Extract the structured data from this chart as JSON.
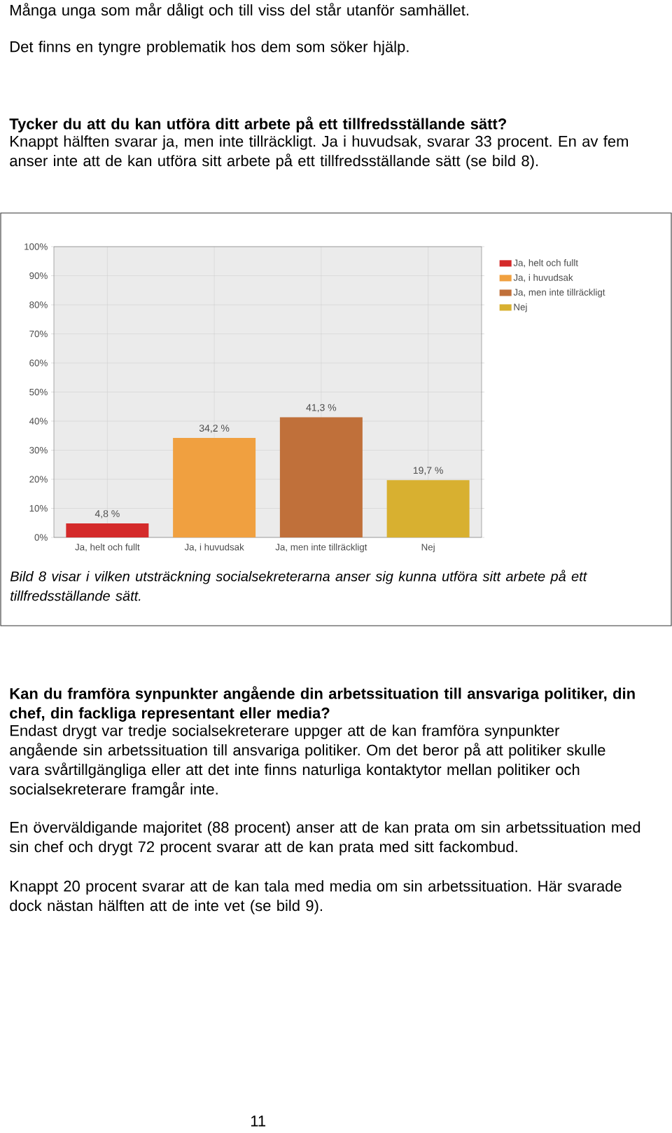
{
  "chart_data": {
    "type": "bar",
    "categories": [
      "Ja, helt och fullt",
      "Ja, i huvudsak",
      "Ja, men inte tillräckligt",
      "Nej"
    ],
    "series": [
      {
        "name": "Ja, helt och fullt",
        "color": "#d42a2a",
        "values": [
          4.8,
          null,
          null,
          null
        ],
        "value_labels": [
          "4,8 %",
          null,
          null,
          null
        ]
      },
      {
        "name": "Ja, i huvudsak",
        "color": "#f0a040",
        "values": [
          null,
          34.2,
          null,
          null
        ],
        "value_labels": [
          null,
          "34,2 %",
          null,
          null
        ]
      },
      {
        "name": "Ja, men inte tillräckligt",
        "color": "#c0703a",
        "values": [
          null,
          null,
          41.3,
          null
        ],
        "value_labels": [
          null,
          null,
          "41,3 %",
          null
        ]
      },
      {
        "name": "Nej",
        "color": "#d8b030",
        "values": [
          null,
          null,
          null,
          19.7
        ],
        "value_labels": [
          null,
          null,
          null,
          "19,7 %"
        ]
      }
    ],
    "ylim": [
      0,
      100
    ],
    "yticks": [
      {
        "value": 0,
        "label": "0%"
      },
      {
        "value": 10,
        "label": "10%"
      },
      {
        "value": 20,
        "label": "20%"
      },
      {
        "value": 30,
        "label": "30%"
      },
      {
        "value": 40,
        "label": "40%"
      },
      {
        "value": 50,
        "label": "50%"
      },
      {
        "value": 60,
        "label": "60%"
      },
      {
        "value": 70,
        "label": "70%"
      },
      {
        "value": 80,
        "label": "80%"
      },
      {
        "value": 90,
        "label": "90%"
      },
      {
        "value": 100,
        "label": "100%"
      }
    ],
    "grid": true,
    "legend": "right",
    "annotations": [
      "Många unga som mår dåligt och till viss del står utanför samhället.",
      "Det finns en tyngre problematik hos dem som söker hjälp.",
      "Tycker du att du kan utföra ditt arbete på ett tillfredsställande sätt?",
      "Knappt hälften svarar ja, men inte tillräckligt. Ja i huvudsak, svarar 33 procent. En av fem anser inte att de kan utföra sitt arbete på ett tillfredsställande sätt (se bild 8).",
      "Bild 8 visar i vilken utsträckning socialsekreterarna anser sig kunna utföra sitt arbete på ett tillfredsställande sätt.",
      "Kan du framföra synpunkter angående din arbetssituation till ansvariga politiker, din chef, din fackliga representant eller media?",
      "Endast drygt var tredje socialsekreterare uppger att de kan framföra synpunkter angående sin arbetssituation till ansvariga politiker. Om det beror på att politiker skulle vara svårtillgängliga eller att det inte finns naturliga kontaktytor mellan politiker och socialsekreterare framgår inte.",
      "En överväldigande majoritet (88 procent) anser att de kan prata om sin arbetssituation med sin chef och drygt 72 procent svarar att de kan prata med sitt fackombud.",
      "Knappt 20 procent svarar att de kan tala med media om sin arbetssituation. Här svarade dock nästan hälften att de inte vet (se bild 9).",
      "11"
    ]
  }
}
